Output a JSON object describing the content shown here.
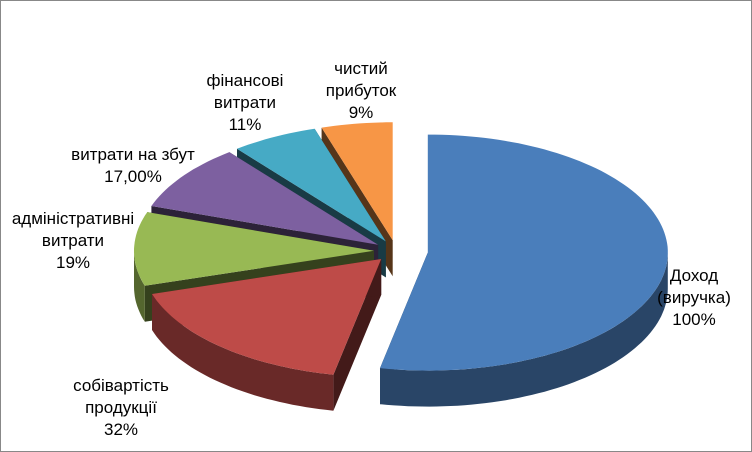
{
  "chart_data": {
    "type": "pie3d",
    "categories": [
      "Доход (виручка)",
      "собівартість продукції",
      "адміністративні витрати",
      "витрати на збут",
      "фінансові витрати",
      "чистий прибуток"
    ],
    "values": [
      100,
      32,
      19,
      17,
      11,
      9
    ],
    "value_labels": [
      "100%",
      "32%",
      "19%",
      "17,00%",
      "11%",
      "9%"
    ],
    "colors": [
      "#4a7ebb",
      "#be4b48",
      "#98b954",
      "#7d60a0",
      "#46aac5",
      "#f79646"
    ]
  }
}
